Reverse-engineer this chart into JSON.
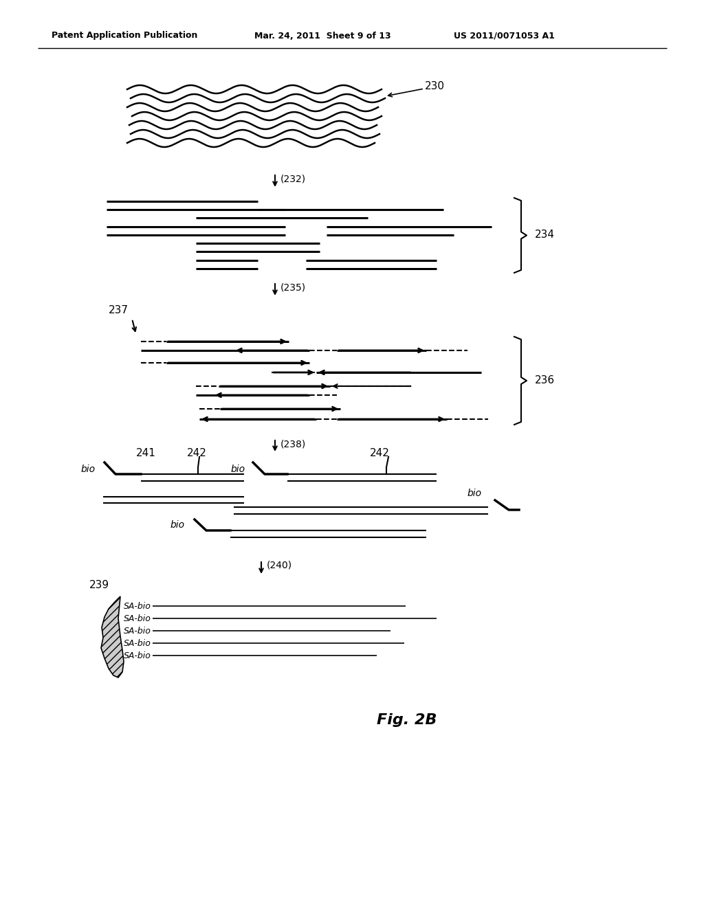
{
  "header_left": "Patent Application Publication",
  "header_mid": "Mar. 24, 2011  Sheet 9 of 13",
  "header_right": "US 2011/0071053 A1",
  "fig_label": "Fig. 2B",
  "bg_color": "#ffffff",
  "text_color": "#000000"
}
